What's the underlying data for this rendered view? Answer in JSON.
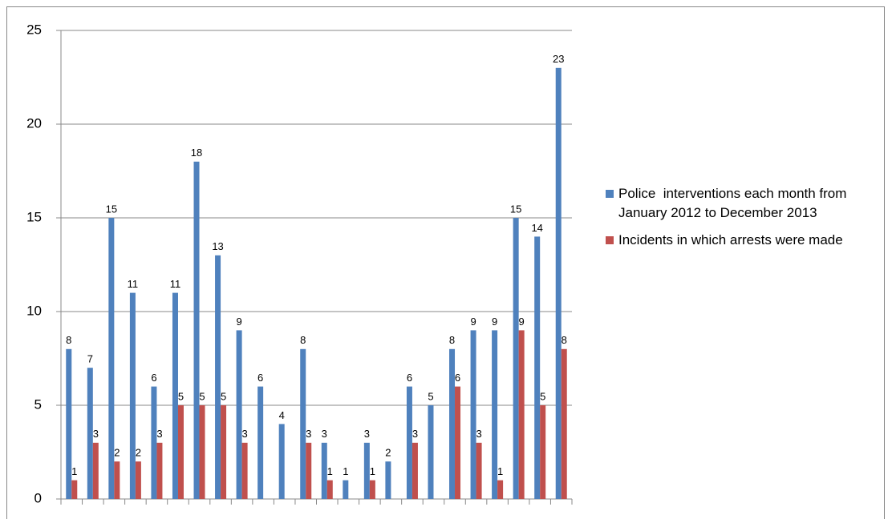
{
  "chart_data": {
    "type": "bar",
    "categories": [
      null,
      null,
      null,
      null,
      null,
      null,
      null,
      null,
      null,
      null,
      null,
      null,
      null,
      null,
      null,
      null,
      null,
      null,
      null,
      null,
      null,
      null,
      null,
      null
    ],
    "series": [
      {
        "name": "Police  interventions each month from  January 2012 to December 2013",
        "color": "#4f81bd",
        "values": [
          8,
          7,
          15,
          11,
          6,
          11,
          18,
          13,
          9,
          6,
          4,
          8,
          3,
          1,
          3,
          2,
          6,
          5,
          8,
          9,
          9,
          15,
          14,
          23
        ]
      },
      {
        "name": "Incidents in which arrests were made",
        "color": "#c0504d",
        "values": [
          1,
          3,
          2,
          2,
          3,
          5,
          5,
          5,
          3,
          null,
          null,
          3,
          1,
          null,
          1,
          null,
          3,
          null,
          6,
          3,
          1,
          9,
          5,
          8
        ]
      }
    ],
    "ylim": [
      0,
      25
    ],
    "yticks": [
      0,
      5,
      10,
      15,
      20,
      25
    ],
    "grid": true,
    "legend": "right"
  }
}
